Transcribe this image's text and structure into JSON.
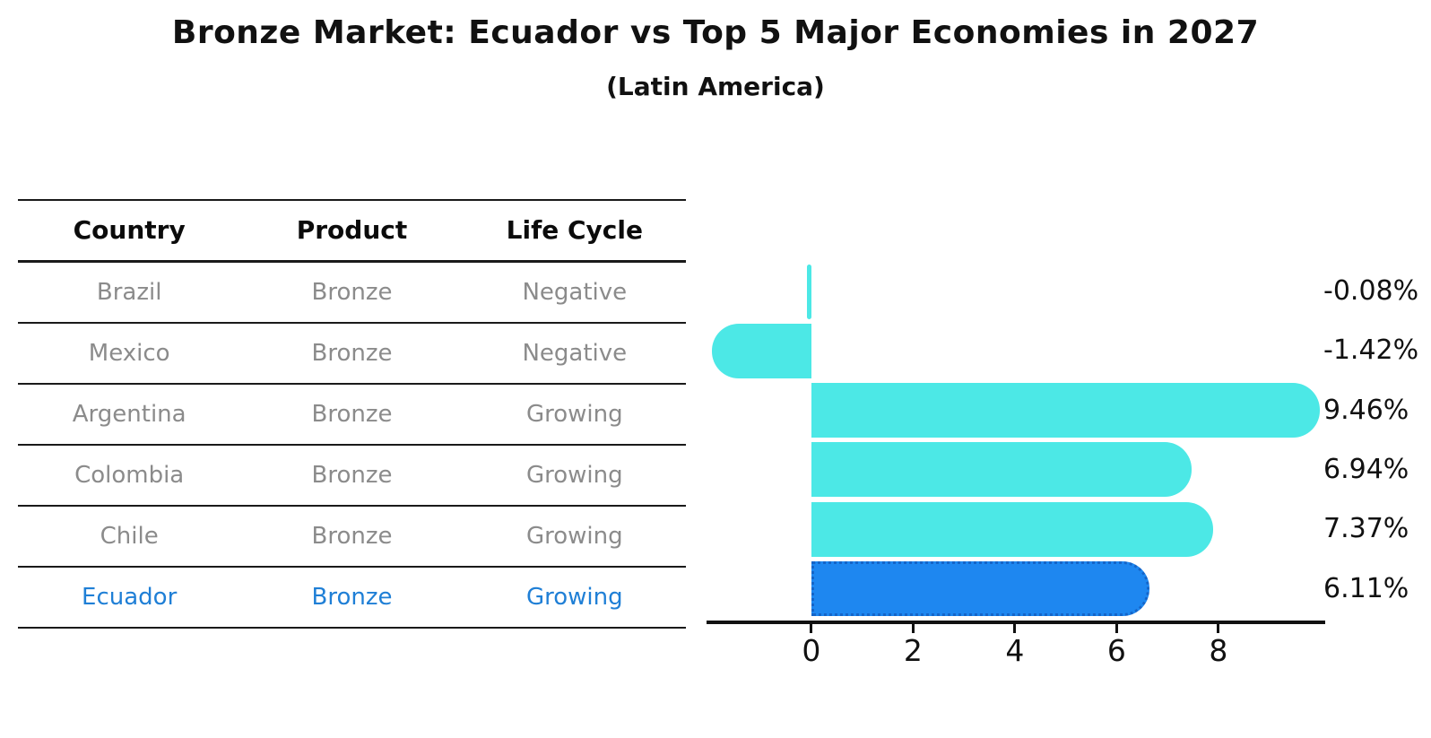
{
  "title": "Bronze Market: Ecuador vs Top 5 Major Economies in 2027",
  "subtitle": "(Latin America)",
  "table": {
    "headers": [
      "Country",
      "Product",
      "Life Cycle"
    ],
    "rows": [
      {
        "country": "Brazil",
        "product": "Bronze",
        "life_cycle": "Negative",
        "highlight": false
      },
      {
        "country": "Mexico",
        "product": "Bronze",
        "life_cycle": "Negative",
        "highlight": false
      },
      {
        "country": "Argentina",
        "product": "Bronze",
        "life_cycle": "Growing",
        "highlight": false
      },
      {
        "country": "Colombia",
        "product": "Bronze",
        "life_cycle": "Growing",
        "highlight": false
      },
      {
        "country": "Chile",
        "product": "Bronze",
        "life_cycle": "Growing",
        "highlight": false
      },
      {
        "country": "Ecuador",
        "product": "Bronze",
        "life_cycle": "Growing",
        "highlight": true
      }
    ]
  },
  "chart_data": {
    "type": "bar",
    "orientation": "horizontal",
    "categories": [
      "Brazil",
      "Mexico",
      "Argentina",
      "Colombia",
      "Chile",
      "Ecuador"
    ],
    "values": [
      -0.08,
      -1.42,
      9.46,
      6.94,
      7.37,
      6.11
    ],
    "value_labels": [
      "-0.08%",
      "-1.42%",
      "9.46%",
      "6.94%",
      "7.37%",
      "6.11%"
    ],
    "highlight_category": "Ecuador",
    "xticks": [
      0,
      2,
      4,
      6,
      8
    ],
    "xtick_labels": [
      "0",
      "2",
      "4",
      "6",
      "8"
    ],
    "xlim": [
      -2.06,
      10.1
    ],
    "grid": false,
    "legend": false,
    "bar_color": "#4ce8e6",
    "highlight_bar_color": "#1e87f0",
    "highlight_border_color": "#1565c8",
    "axis_color": "#111111"
  },
  "colors": {
    "title_text": "#111111",
    "muted_text": "#8b8b8b",
    "highlight_text": "#1f7fd6",
    "table_line": "#1a1a1a"
  }
}
